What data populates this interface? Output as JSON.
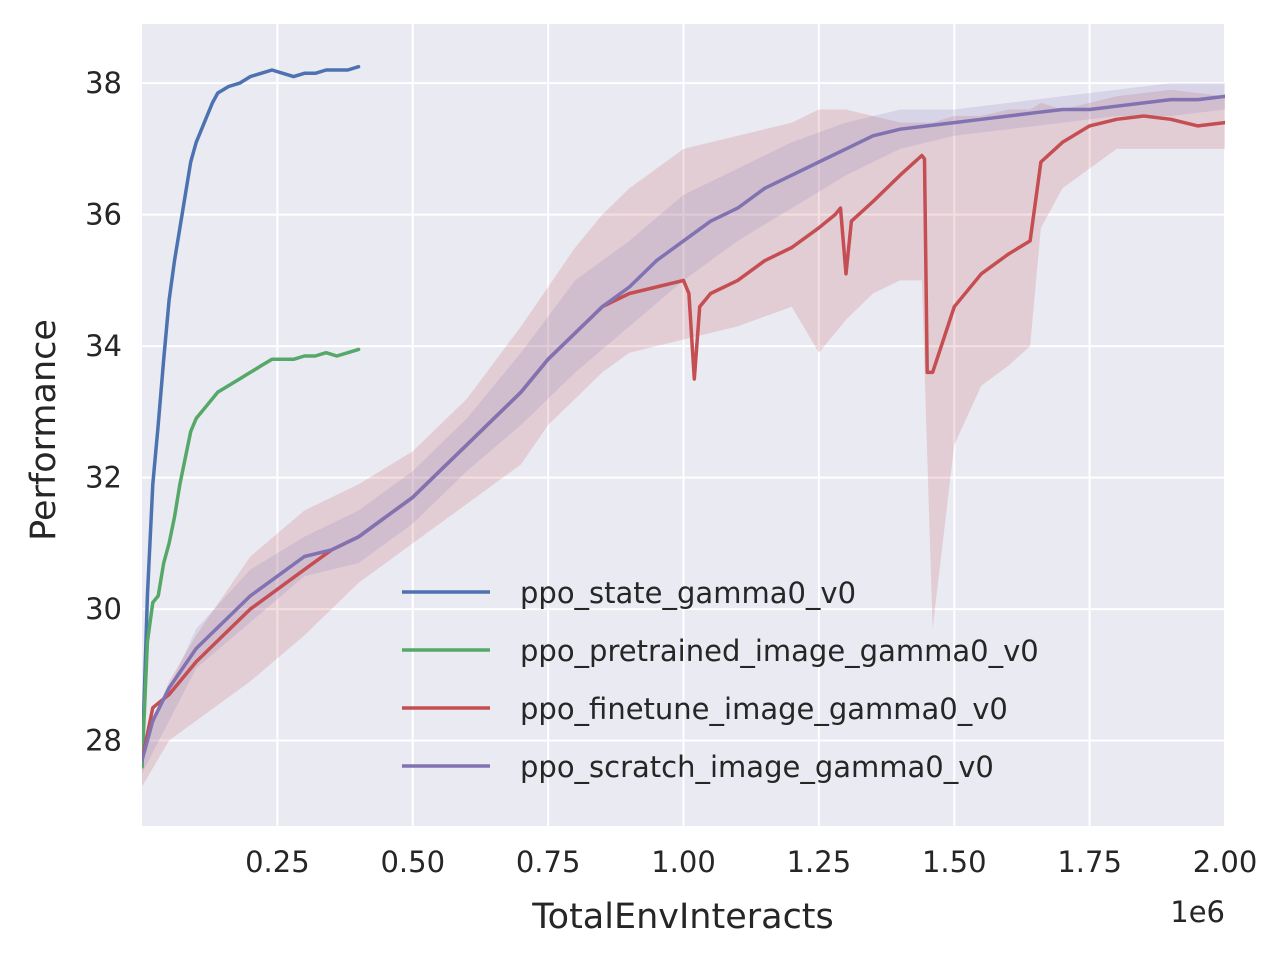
{
  "chart_data": {
    "type": "line",
    "title": "",
    "xlabel": "TotalEnvInteracts",
    "ylabel": "Performance",
    "x_offset_text": "1e6",
    "xlim": [
      0.0,
      2.0
    ],
    "ylim": [
      26.7,
      38.9
    ],
    "x_ticks": [
      0.25,
      0.5,
      0.75,
      1.0,
      1.25,
      1.5,
      1.75,
      2.0
    ],
    "x_tick_labels": [
      "0.25",
      "0.50",
      "0.75",
      "1.00",
      "1.25",
      "1.50",
      "1.75",
      "2.00"
    ],
    "y_ticks": [
      28,
      30,
      32,
      34,
      36,
      38
    ],
    "y_tick_labels": [
      "28",
      "30",
      "32",
      "34",
      "36",
      "38"
    ],
    "grid": true,
    "legend_position": "lower-right",
    "background": "#eaeaf2",
    "series": [
      {
        "name": "ppo_state_gamma0_v0",
        "color": "#4c72b0",
        "x": [
          0.0,
          0.01,
          0.02,
          0.03,
          0.04,
          0.05,
          0.06,
          0.07,
          0.08,
          0.09,
          0.1,
          0.11,
          0.12,
          0.13,
          0.14,
          0.15,
          0.16,
          0.18,
          0.2,
          0.22,
          0.24,
          0.26,
          0.28,
          0.3,
          0.32,
          0.34,
          0.36,
          0.38,
          0.4
        ],
        "y": [
          27.6,
          30.2,
          31.9,
          32.8,
          33.8,
          34.7,
          35.3,
          35.8,
          36.3,
          36.8,
          37.1,
          37.3,
          37.5,
          37.7,
          37.85,
          37.9,
          37.95,
          38.0,
          38.1,
          38.15,
          38.2,
          38.15,
          38.1,
          38.15,
          38.15,
          38.2,
          38.2,
          38.2,
          38.25
        ]
      },
      {
        "name": "ppo_pretrained_image_gamma0_v0",
        "color": "#55a868",
        "x": [
          0.0,
          0.01,
          0.02,
          0.03,
          0.04,
          0.05,
          0.06,
          0.07,
          0.08,
          0.09,
          0.1,
          0.11,
          0.12,
          0.14,
          0.16,
          0.18,
          0.2,
          0.22,
          0.24,
          0.26,
          0.28,
          0.3,
          0.32,
          0.34,
          0.36,
          0.38,
          0.4
        ],
        "y": [
          27.6,
          29.5,
          30.1,
          30.2,
          30.7,
          31.0,
          31.4,
          31.9,
          32.3,
          32.7,
          32.9,
          33.0,
          33.1,
          33.3,
          33.4,
          33.5,
          33.6,
          33.7,
          33.8,
          33.8,
          33.8,
          33.85,
          33.85,
          33.9,
          33.85,
          33.9,
          33.95
        ]
      },
      {
        "name": "ppo_finetune_image_gamma0_v0",
        "color": "#c44e52",
        "x": [
          0.0,
          0.02,
          0.05,
          0.1,
          0.15,
          0.2,
          0.25,
          0.3,
          0.35,
          0.4,
          0.45,
          0.5,
          0.55,
          0.6,
          0.65,
          0.7,
          0.75,
          0.8,
          0.85,
          0.9,
          0.95,
          1.0,
          1.01,
          1.02,
          1.03,
          1.05,
          1.1,
          1.15,
          1.2,
          1.25,
          1.28,
          1.29,
          1.3,
          1.31,
          1.35,
          1.4,
          1.44,
          1.445,
          1.45,
          1.46,
          1.5,
          1.55,
          1.6,
          1.64,
          1.66,
          1.7,
          1.75,
          1.8,
          1.85,
          1.9,
          1.95,
          2.0
        ],
        "y": [
          27.7,
          28.5,
          28.7,
          29.2,
          29.6,
          30.0,
          30.3,
          30.6,
          30.9,
          31.1,
          31.4,
          31.7,
          32.1,
          32.5,
          32.9,
          33.3,
          33.8,
          34.2,
          34.6,
          34.8,
          34.9,
          35.0,
          34.8,
          33.5,
          34.6,
          34.8,
          35.0,
          35.3,
          35.5,
          35.8,
          36.0,
          36.1,
          35.1,
          35.9,
          36.2,
          36.6,
          36.9,
          36.85,
          33.6,
          33.6,
          34.6,
          35.1,
          35.4,
          35.6,
          36.8,
          37.1,
          37.35,
          37.45,
          37.5,
          37.45,
          37.35,
          37.4
        ]
      },
      {
        "name": "ppo_scratch_image_gamma0_v0",
        "color": "#8172b2",
        "x": [
          0.0,
          0.02,
          0.05,
          0.1,
          0.15,
          0.2,
          0.25,
          0.3,
          0.35,
          0.4,
          0.45,
          0.5,
          0.55,
          0.6,
          0.65,
          0.7,
          0.75,
          0.8,
          0.85,
          0.9,
          0.95,
          1.0,
          1.05,
          1.1,
          1.15,
          1.2,
          1.25,
          1.3,
          1.35,
          1.4,
          1.45,
          1.5,
          1.55,
          1.6,
          1.65,
          1.7,
          1.75,
          1.8,
          1.85,
          1.9,
          1.95,
          2.0
        ],
        "y": [
          27.7,
          28.3,
          28.8,
          29.4,
          29.8,
          30.2,
          30.5,
          30.8,
          30.9,
          31.1,
          31.4,
          31.7,
          32.1,
          32.5,
          32.9,
          33.3,
          33.8,
          34.2,
          34.6,
          34.9,
          35.3,
          35.6,
          35.9,
          36.1,
          36.4,
          36.6,
          36.8,
          37.0,
          37.2,
          37.3,
          37.35,
          37.4,
          37.45,
          37.5,
          37.55,
          37.6,
          37.6,
          37.65,
          37.7,
          37.75,
          37.75,
          37.8
        ]
      }
    ],
    "bands": [
      {
        "series": "ppo_finetune_image_gamma0_v0",
        "color": "#c44e52",
        "x": [
          0.0,
          0.05,
          0.1,
          0.2,
          0.3,
          0.4,
          0.5,
          0.6,
          0.7,
          0.75,
          0.8,
          0.85,
          0.9,
          1.0,
          1.1,
          1.2,
          1.25,
          1.3,
          1.35,
          1.4,
          1.44,
          1.46,
          1.5,
          1.55,
          1.6,
          1.64,
          1.66,
          1.7,
          1.8,
          1.9,
          2.0
        ],
        "lower": [
          27.3,
          28.0,
          28.3,
          28.9,
          29.6,
          30.4,
          31.0,
          31.6,
          32.2,
          32.8,
          33.2,
          33.6,
          33.9,
          34.1,
          34.3,
          34.6,
          33.9,
          34.4,
          34.8,
          35.0,
          35.0,
          29.7,
          32.5,
          33.4,
          33.7,
          34.0,
          35.8,
          36.4,
          37.0,
          37.0,
          37.0
        ],
        "upper": [
          27.9,
          28.9,
          29.6,
          30.8,
          31.5,
          31.9,
          32.4,
          33.2,
          34.3,
          34.9,
          35.5,
          36.0,
          36.4,
          37.0,
          37.2,
          37.4,
          37.6,
          37.6,
          37.5,
          37.4,
          37.4,
          37.4,
          37.5,
          37.5,
          37.6,
          37.6,
          37.7,
          37.6,
          37.8,
          37.9,
          37.8
        ]
      },
      {
        "series": "ppo_scratch_image_gamma0_v0",
        "color": "#8172b2",
        "x": [
          0.0,
          0.1,
          0.2,
          0.3,
          0.4,
          0.5,
          0.6,
          0.7,
          0.8,
          0.9,
          1.0,
          1.1,
          1.2,
          1.3,
          1.4,
          1.5,
          1.6,
          1.7,
          1.8,
          1.9,
          2.0
        ],
        "lower": [
          27.5,
          29.1,
          29.8,
          30.5,
          30.7,
          31.3,
          32.1,
          32.8,
          33.6,
          34.3,
          35.0,
          35.6,
          36.1,
          36.6,
          37.0,
          37.2,
          37.3,
          37.4,
          37.5,
          37.5,
          37.6
        ],
        "upper": [
          27.9,
          29.7,
          30.6,
          31.1,
          31.5,
          32.1,
          32.9,
          33.9,
          35.0,
          35.6,
          36.3,
          36.7,
          37.1,
          37.4,
          37.6,
          37.6,
          37.7,
          37.8,
          37.9,
          38.0,
          38.0
        ]
      }
    ]
  }
}
